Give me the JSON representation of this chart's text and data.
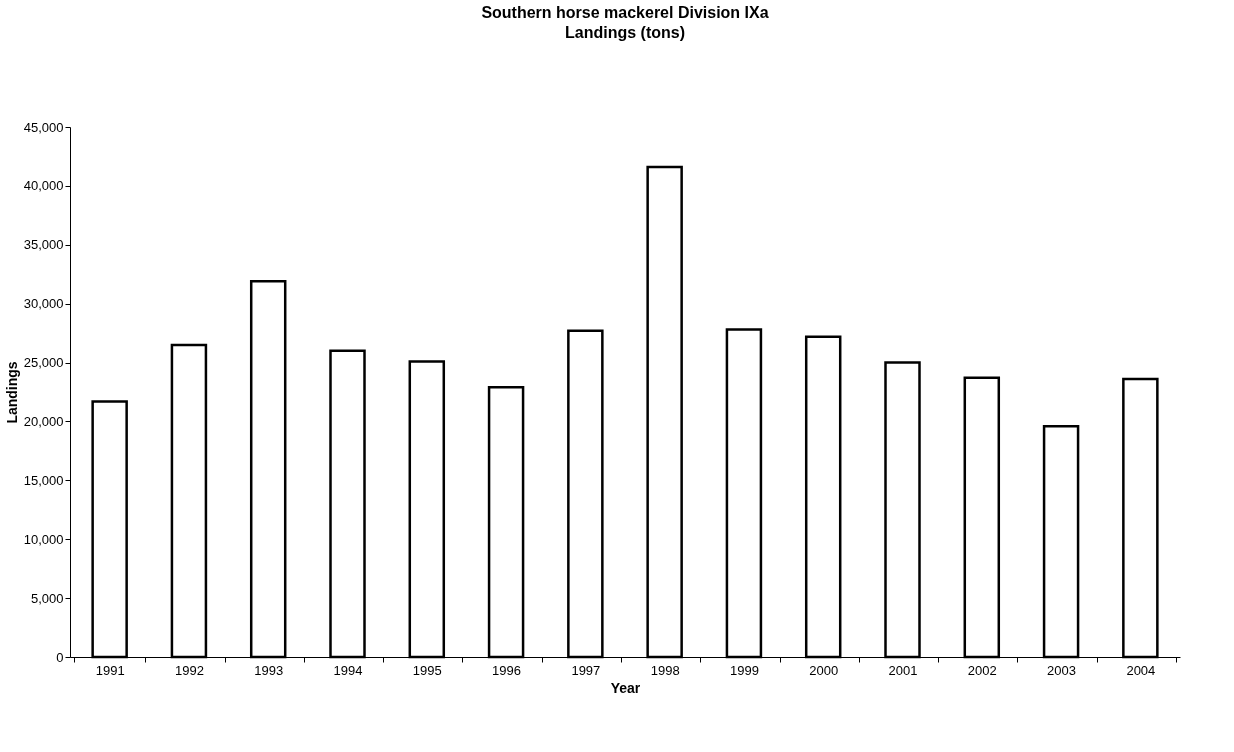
{
  "chart_data": {
    "type": "bar",
    "title": "Southern horse mackerel Division IXa",
    "subtitle": "Landings (tons)",
    "xlabel": "Year",
    "ylabel": "Landings",
    "categories": [
      "1991",
      "1992",
      "1993",
      "1994",
      "1995",
      "1996",
      "1997",
      "1998",
      "1999",
      "2000",
      "2001",
      "2002",
      "2003",
      "2004"
    ],
    "values": [
      21700,
      26500,
      31900,
      26000,
      25100,
      22900,
      27700,
      41600,
      27800,
      27200,
      25000,
      23700,
      19600,
      23600
    ],
    "color": "#ffffff",
    "ylim": [
      0,
      45000
    ],
    "yticks": [
      {
        "value": 0,
        "label": "0"
      },
      {
        "value": 5000,
        "label": "5,000"
      },
      {
        "value": 10000,
        "label": "10,000"
      },
      {
        "value": 15000,
        "label": "15,000"
      },
      {
        "value": 20000,
        "label": "20,000"
      },
      {
        "value": 25000,
        "label": "25,000"
      },
      {
        "value": 30000,
        "label": "30,000"
      },
      {
        "value": 35000,
        "label": "35,000"
      },
      {
        "value": 40000,
        "label": "40,000"
      },
      {
        "value": 45000,
        "label": "45,000"
      }
    ],
    "grid": false
  }
}
